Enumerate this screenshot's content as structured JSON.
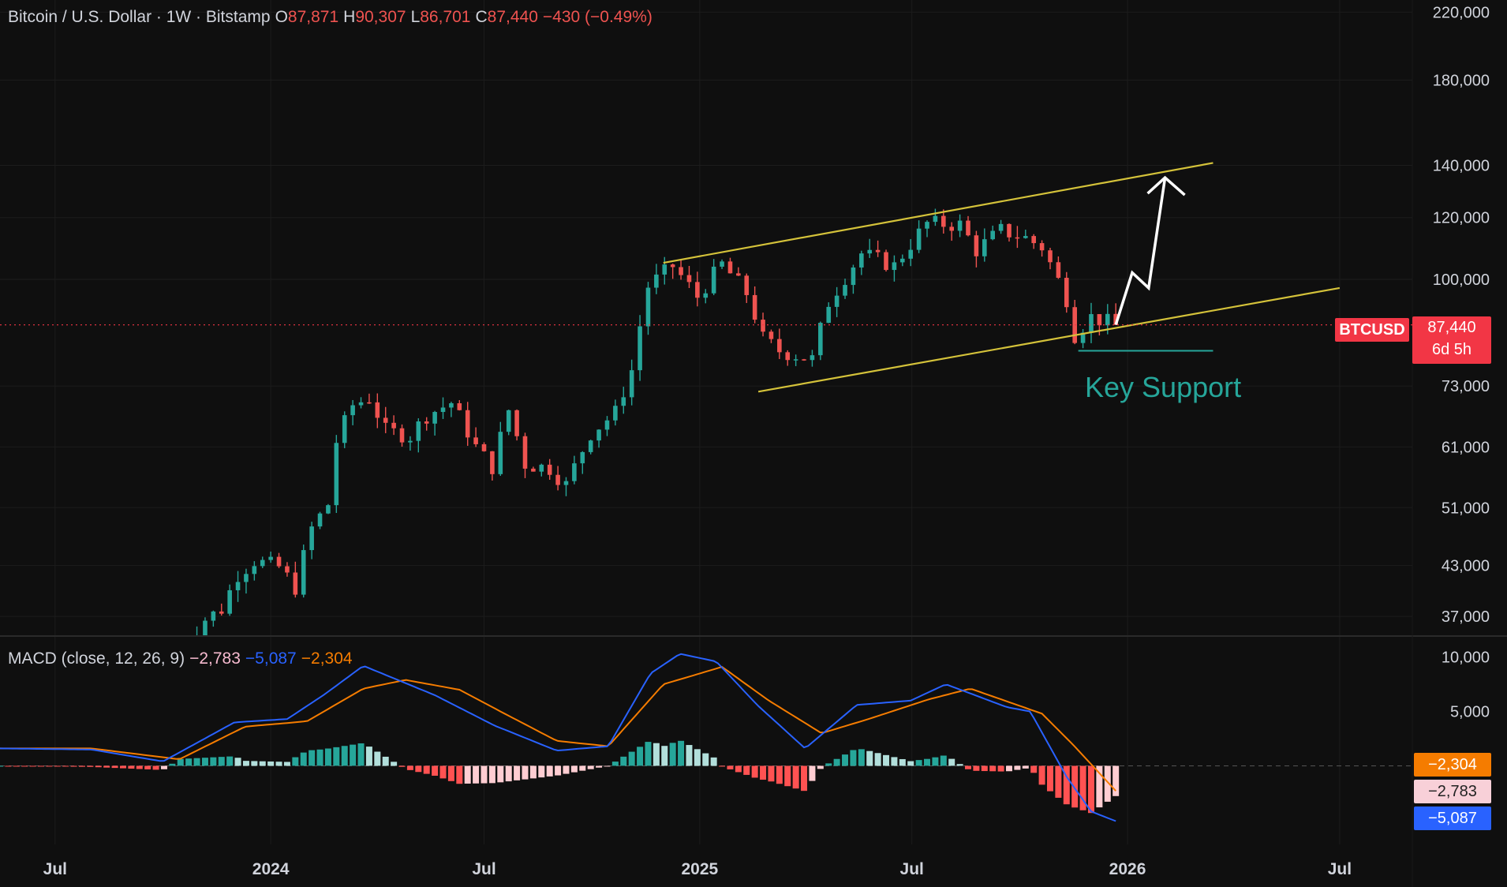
{
  "header": {
    "symbol_title": "Bitcoin / U.S. Dollar · 1W · Bitstamp",
    "open_label": "O",
    "open": "87,871",
    "high_label": "H",
    "high": "90,307",
    "low_label": "L",
    "low": "86,701",
    "close_label": "C",
    "close": "87,440",
    "change": "−430 (−0.49%)"
  },
  "price_badge": {
    "symbol": "BTCUSD",
    "price": "87,440",
    "countdown": "6d 5h"
  },
  "annotation": {
    "key_support": "Key Support"
  },
  "macd_legend": {
    "name": "MACD (close, 12, 26, 9)",
    "hist": "−2,783",
    "macd": "−5,087",
    "signal": "−2,304"
  },
  "macd_badges": {
    "signal": "−2,304",
    "hist": "−2,783",
    "macd": "−5,087"
  },
  "colors": {
    "up": "#26a69a",
    "down": "#ef5350",
    "channel": "#d4c23a",
    "macd_line": "#2962ff",
    "signal_line": "#f57c00",
    "background": "#0f0f0f"
  },
  "chart_data": {
    "type": "candlestick",
    "timeframe": "1W",
    "y_scale": "log",
    "price_ticks": [
      "220,000",
      "180,000",
      "140,000",
      "120,000",
      "100,000",
      "73,000",
      "61,000",
      "51,000",
      "43,000",
      "37,000"
    ],
    "price_tick_values": [
      220000,
      180000,
      140000,
      120000,
      100000,
      73000,
      61000,
      51000,
      43000,
      37000
    ],
    "ylim": [
      35000,
      228000
    ],
    "x_ticks": [
      "Jul",
      "2024",
      "Jul",
      "2025",
      "Jul",
      "2026",
      "Jul"
    ],
    "x_tick_dates": [
      "2023-07-01",
      "2024-01-01",
      "2024-07-01",
      "2025-01-01",
      "2025-07-01",
      "2026-01-01",
      "2026-07-01"
    ],
    "xlim": [
      "2023-05-15",
      "2026-09-01"
    ],
    "close_anchors": [
      [
        "2023-10-16",
        30000
      ],
      [
        "2023-10-23",
        34500
      ],
      [
        "2023-11-06",
        36700
      ],
      [
        "2023-11-20",
        37800
      ],
      [
        "2023-12-04",
        41900
      ],
      [
        "2023-12-18",
        43600
      ],
      [
        "2024-01-08",
        42800
      ],
      [
        "2024-01-22",
        40300
      ],
      [
        "2024-02-05",
        48000
      ],
      [
        "2024-02-19",
        51500
      ],
      [
        "2024-02-26",
        62000
      ],
      [
        "2024-03-11",
        69000
      ],
      [
        "2024-03-25",
        70500
      ],
      [
        "2024-04-08",
        64000
      ],
      [
        "2024-04-29",
        63000
      ],
      [
        "2024-05-13",
        67000
      ],
      [
        "2024-06-03",
        69500
      ],
      [
        "2024-06-24",
        61000
      ],
      [
        "2024-07-08",
        57500
      ],
      [
        "2024-07-22",
        68000
      ],
      [
        "2024-08-05",
        58000
      ],
      [
        "2024-08-26",
        57300
      ],
      [
        "2024-09-09",
        54500
      ],
      [
        "2024-09-30",
        63500
      ],
      [
        "2024-10-21",
        67500
      ],
      [
        "2024-11-04",
        76500
      ],
      [
        "2024-11-18",
        98000
      ],
      [
        "2024-12-09",
        104000
      ],
      [
        "2024-12-30",
        95000
      ],
      [
        "2025-01-20",
        104500
      ],
      [
        "2025-02-10",
        96000
      ],
      [
        "2025-02-24",
        84000
      ],
      [
        "2025-03-10",
        81000
      ],
      [
        "2025-04-07",
        79000
      ],
      [
        "2025-04-21",
        93500
      ],
      [
        "2025-05-19",
        108000
      ],
      [
        "2025-06-16",
        104000
      ],
      [
        "2025-07-14",
        118000
      ],
      [
        "2025-08-11",
        117500
      ],
      [
        "2025-08-25",
        109000
      ],
      [
        "2025-09-15",
        115500
      ],
      [
        "2025-10-06",
        113000
      ],
      [
        "2025-10-20",
        110000
      ],
      [
        "2025-11-10",
        94500
      ],
      [
        "2025-11-17",
        85000
      ],
      [
        "2025-12-01",
        89500
      ],
      [
        "2025-12-22",
        87440
      ]
    ],
    "channel_upper": [
      [
        "2024-12-01",
        105000
      ],
      [
        "2026-03-15",
        141000
      ]
    ],
    "channel_lower": [
      [
        "2025-02-20",
        71800
      ],
      [
        "2026-07-01",
        97500
      ]
    ],
    "projection_path": [
      [
        "2025-12-22",
        87500
      ],
      [
        "2026-01-05",
        102000
      ],
      [
        "2026-01-19",
        97500
      ],
      [
        "2026-02-02",
        135000
      ]
    ],
    "current_price": 87440,
    "key_support_level": 81000,
    "macd": {
      "params": "close, 12, 26, 9",
      "y_ticks": [
        "10,000",
        "5,000"
      ],
      "y_tick_values": [
        10000,
        5000
      ],
      "ylim": [
        -6500,
        11500
      ],
      "macd_anchors": [
        [
          "2023-05-15",
          1600
        ],
        [
          "2023-08-01",
          1500
        ],
        [
          "2023-10-01",
          400
        ],
        [
          "2023-12-01",
          4000
        ],
        [
          "2024-01-15",
          4300
        ],
        [
          "2024-02-15",
          6500
        ],
        [
          "2024-03-20",
          9200
        ],
        [
          "2024-05-20",
          6500
        ],
        [
          "2024-07-10",
          3700
        ],
        [
          "2024-09-01",
          1400
        ],
        [
          "2024-10-15",
          1800
        ],
        [
          "2024-11-20",
          8500
        ],
        [
          "2024-12-15",
          10300
        ],
        [
          "2025-01-15",
          9600
        ],
        [
          "2025-02-20",
          5500
        ],
        [
          "2025-04-01",
          1600
        ],
        [
          "2025-05-15",
          5600
        ],
        [
          "2025-06-30",
          6000
        ],
        [
          "2025-07-30",
          7500
        ],
        [
          "2025-09-20",
          5400
        ],
        [
          "2025-10-10",
          5000
        ],
        [
          "2025-11-10",
          -1000
        ],
        [
          "2025-12-01",
          -4200
        ],
        [
          "2025-12-22",
          -5087
        ]
      ],
      "signal_anchors": [
        [
          "2023-05-15",
          1600
        ],
        [
          "2023-08-01",
          1600
        ],
        [
          "2023-10-15",
          600
        ],
        [
          "2023-12-10",
          3600
        ],
        [
          "2024-02-01",
          4100
        ],
        [
          "2024-03-20",
          7100
        ],
        [
          "2024-04-25",
          7900
        ],
        [
          "2024-06-10",
          7000
        ],
        [
          "2024-07-15",
          5000
        ],
        [
          "2024-09-01",
          2300
        ],
        [
          "2024-10-15",
          1800
        ],
        [
          "2024-12-01",
          7500
        ],
        [
          "2025-01-20",
          9100
        ],
        [
          "2025-03-01",
          6000
        ],
        [
          "2025-04-15",
          3000
        ],
        [
          "2025-05-25",
          4300
        ],
        [
          "2025-07-15",
          6100
        ],
        [
          "2025-08-20",
          7100
        ],
        [
          "2025-10-20",
          4800
        ],
        [
          "2025-11-15",
          2000
        ],
        [
          "2025-12-22",
          -2304
        ]
      ]
    }
  }
}
